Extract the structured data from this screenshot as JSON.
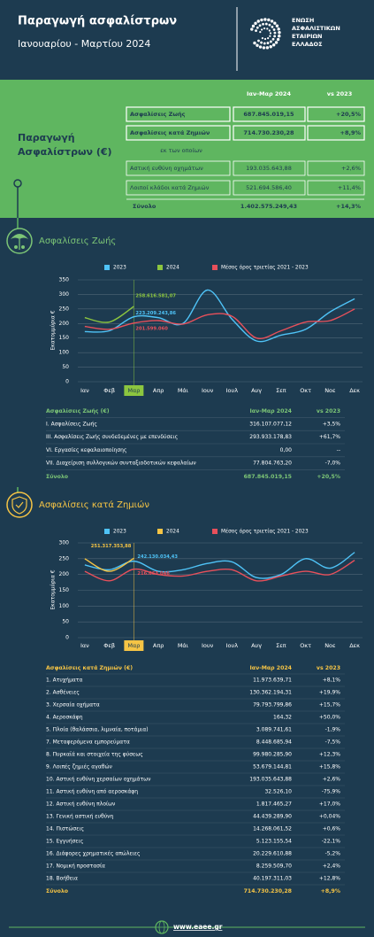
{
  "header": {
    "title": "Παραγωγή ασφαλίστρων",
    "subtitle": "Ιανουαρίου - Μαρτίου 2024",
    "logo": [
      "ΕΝΩΣΗ",
      "ΑΣΦΑΛΙΣΤΙΚΩΝ",
      "ΕΤΑΙΡΙΩΝ",
      "ΕΛΛΑΔΟΣ"
    ]
  },
  "summary": {
    "title": [
      "Παραγωγή",
      "Ασφαλίστρων (€)"
    ],
    "columns": [
      "Ιαν-Μαρ 2024",
      "vs 2023"
    ],
    "rows": [
      [
        "Ασφαλίσεις Ζωής",
        "687.845.019,15",
        "+20,5%"
      ],
      [
        "Ασφαλίσεις κατά Ζημιών",
        "714.730.230,28",
        "+8,9%"
      ]
    ],
    "note": "εκ των οποίων",
    "sub_rows": [
      [
        "Αστική ευθύνη οχημάτων",
        "193.035.643,88",
        "+2,6%"
      ],
      [
        "Λοιποί κλάδοι κατά Ζημιών",
        "521.694.586,40",
        "+11,4%"
      ]
    ],
    "total": [
      "Σύνολο",
      "1.402.575.249,43",
      "+14,3%"
    ]
  },
  "sections": [
    {
      "title": "Ασφαλίσεις Ζωής",
      "color": "#7cc576",
      "table": {
        "columns": [
          "Ασφαλίσεις Ζωής (€)",
          "Ιαν-Μαρ 2024",
          "vs 2023"
        ],
        "rows": [
          [
            "I. Ασφαλίσεις  Ζωής",
            "316.107.077,12",
            "+3,5%"
          ],
          [
            "III. Ασφαλίσεις  Ζωής  συνδεδεμένες με επενδύσεις",
            "293.933.178,83",
            "+61,7%"
          ],
          [
            "VI. Εργασίες κεφαλαιοποίησης",
            "0,00",
            "--"
          ],
          [
            "VII. Διαχείριση συλλογικών συνταξιοδοτικών κεφαλαίων",
            "77.804.763,20",
            "-7,0%"
          ]
        ],
        "total": [
          "Σύνολο",
          "687.845.019,15",
          "+20,5%"
        ]
      }
    },
    {
      "title": "Ασφαλίσεις κατά Ζημιών",
      "color": "#f5c445",
      "table": {
        "columns": [
          "Ασφαλίσεις κατά Ζημιών (€)",
          "Ιαν-Μαρ 2024",
          "vs 2023"
        ],
        "rows": [
          [
            "1. Ατυχήματα",
            "11.973.639,71",
            "+8,1%"
          ],
          [
            "2. Ασθένειες",
            "130.362.194,31",
            "+19,9%"
          ],
          [
            "3. Χερσαία οχήματα",
            "79.793.799,86",
            "+15,7%"
          ],
          [
            "4. Αεροσκάφη",
            "164,32",
            "+50,0%"
          ],
          [
            "5. Πλοία (θαλάσσια, λιμναία, ποτάμια)",
            "3.089.741,61",
            "-1,9%"
          ],
          [
            "7. Μεταφερόμενα εμπορεύματα",
            "8.448.685,94",
            "-7,5%"
          ],
          [
            "8. Πυρκαϊά και στοιχεία της φύσεως",
            "99.980.285,90",
            "+12,3%"
          ],
          [
            "9. Λοιπές ζημιές αγαθών",
            "53.679.144,81",
            "+15,8%"
          ],
          [
            "10. Αστική ευθύνη χερσαίων οχημάτων",
            "193.035.643,88",
            "+2,6%"
          ],
          [
            "11. Αστική ευθύνη από αεροσκάφη",
            "32.526,10",
            "-75,9%"
          ],
          [
            "12. Αστική ευθύνη πλοίων",
            "1.817.465,27",
            "+17,0%"
          ],
          [
            "13. Γενική αστική ευθύνη",
            "44.439.289,90",
            "+0,04%"
          ],
          [
            "14. Πιστώσεις",
            "14.268.061,52",
            "+0,6%"
          ],
          [
            "15. Εγγυήσεις",
            "5.123.155,54",
            "-22,1%"
          ],
          [
            "16. Διάφορες χρηματικές απώλειες",
            "20.229.610,88",
            "-5,2%"
          ],
          [
            "17. Νομική προστασία",
            "8.259.509,70",
            "+2,4%"
          ],
          [
            "18. Βοήθεια",
            "40.197.311,03",
            "+12,8%"
          ]
        ],
        "total": [
          "Σύνολο",
          "714.730.230,28",
          "+8,9%"
        ]
      }
    }
  ],
  "chart_data": [
    {
      "type": "line",
      "ylabel": "Εκατομμύρια €",
      "grid": true,
      "ylim": [
        0,
        350
      ],
      "yticks": [
        0,
        50,
        100,
        150,
        200,
        250,
        300,
        350
      ],
      "categories": [
        "Ιαν",
        "Φεβ",
        "Μαρ",
        "Απρ",
        "Μάι",
        "Ιουν",
        "Ιουλ",
        "Αυγ",
        "Σεπ",
        "Οκτ",
        "Νοε",
        "Δεκ"
      ],
      "series": [
        {
          "name": "2023",
          "color": "#4fc3f7",
          "values": [
            172,
            175,
            223.20924386,
            220,
            200,
            315,
            215,
            140,
            160,
            180,
            240,
            285
          ],
          "value_labels": [
            null,
            null,
            "223.209.243,86",
            null,
            null,
            null,
            null,
            null,
            null,
            null,
            null,
            null
          ]
        },
        {
          "name": "2024",
          "color": "#8cc63f",
          "values": [
            220,
            205,
            258.61658107,
            null,
            null,
            null,
            null,
            null,
            null,
            null,
            null,
            null
          ],
          "value_labels": [
            null,
            null,
            "258.616.581,07",
            null,
            null,
            null,
            null,
            null,
            null,
            null,
            null,
            null
          ]
        },
        {
          "name": "Μέσος όρος τριετίας 2021 - 2023",
          "color": "#e8505b",
          "values": [
            190,
            180,
            201.59906,
            210,
            198,
            230,
            225,
            150,
            175,
            205,
            210,
            250
          ],
          "value_labels": [
            null,
            null,
            "201.599.060",
            null,
            null,
            null,
            null,
            null,
            null,
            null,
            null,
            null
          ]
        }
      ]
    },
    {
      "type": "line",
      "ylabel": "Εκατομμύρια €",
      "grid": true,
      "ylim": [
        0,
        300
      ],
      "yticks": [
        0,
        50,
        100,
        150,
        200,
        250,
        300
      ],
      "categories": [
        "Ιαν",
        "Φεβ",
        "Μαρ",
        "Απρ",
        "Μάι",
        "Ιουν",
        "Ιουλ",
        "Αυγ",
        "Σεπ",
        "Οκτ",
        "Νοε",
        "Δεκ"
      ],
      "series": [
        {
          "name": "2023",
          "color": "#4fc3f7",
          "values": [
            230,
            215,
            242.13003443,
            210,
            215,
            235,
            240,
            190,
            200,
            250,
            220,
            270
          ],
          "value_labels": [
            null,
            null,
            "242.130.034,43",
            null,
            null,
            null,
            null,
            null,
            null,
            null,
            null,
            null
          ]
        },
        {
          "name": "2024",
          "color": "#f5c445",
          "values": [
            250,
            210,
            251.31735388,
            null,
            null,
            null,
            null,
            null,
            null,
            null,
            null,
            null
          ],
          "value_labels": [
            null,
            null,
            "251.317.353,88",
            null,
            null,
            null,
            null,
            null,
            null,
            null,
            null,
            null
          ]
        },
        {
          "name": "Μέσος όρος τριετίας 2021 - 2023",
          "color": "#e8505b",
          "values": [
            210,
            180,
            216.663046,
            200,
            195,
            210,
            215,
            180,
            195,
            210,
            200,
            245
          ],
          "value_labels": [
            null,
            null,
            "216.663.046",
            null,
            null,
            null,
            null,
            null,
            null,
            null,
            null,
            null
          ]
        }
      ]
    }
  ],
  "footer": {
    "url": "www.eaee.gr"
  }
}
